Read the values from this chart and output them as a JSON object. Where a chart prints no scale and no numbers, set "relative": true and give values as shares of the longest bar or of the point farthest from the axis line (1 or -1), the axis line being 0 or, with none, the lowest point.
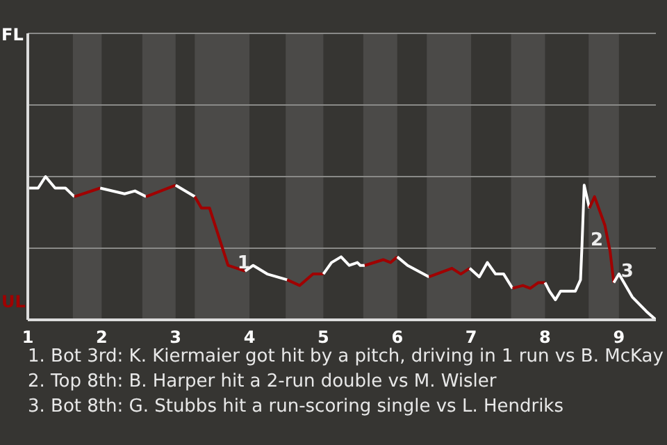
{
  "chart_data": {
    "type": "line",
    "relative": true,
    "series": [
      {
        "color": "#ffffff",
        "x": [
          1.02,
          1.14,
          1.24,
          1.37,
          1.51,
          1.63
        ],
        "values": [
          0.92,
          0.92,
          1,
          0.92,
          0.92,
          0.86
        ]
      },
      {
        "color": "#a00000",
        "x": [
          1.63,
          1.98
        ],
        "values": [
          0.86,
          0.92
        ]
      },
      {
        "color": "#ffffff",
        "x": [
          1.98,
          2.31,
          2.45,
          2.6
        ],
        "values": [
          0.92,
          0.88,
          0.9,
          0.86
        ]
      },
      {
        "color": "#a00000",
        "x": [
          2.6,
          3.0
        ],
        "values": [
          0.86,
          0.94
        ]
      },
      {
        "color": "#ffffff",
        "x": [
          3.0,
          3.26
        ],
        "values": [
          0.94,
          0.86
        ]
      },
      {
        "color": "#a00000",
        "x": [
          3.26,
          3.35,
          3.46,
          3.71,
          3.83,
          3.94
        ],
        "values": [
          0.86,
          0.78,
          0.78,
          0.38,
          0.36,
          0.34
        ]
      },
      {
        "color": "#ffffff",
        "x": [
          3.94,
          4.05,
          4.24,
          4.51
        ],
        "values": [
          0.34,
          0.38,
          0.32,
          0.28
        ]
      },
      {
        "color": "#a00000",
        "x": [
          4.51,
          4.68,
          4.86,
          5.0
        ],
        "values": [
          0.28,
          0.24,
          0.32,
          0.32
        ]
      },
      {
        "color": "#ffffff",
        "x": [
          5.0,
          5.11,
          5.24,
          5.35,
          5.46,
          5.5,
          5.56
        ],
        "values": [
          0.32,
          0.4,
          0.44,
          0.38,
          0.4,
          0.38,
          0.38
        ]
      },
      {
        "color": "#a00000",
        "x": [
          5.56,
          5.81,
          5.91,
          6.0
        ],
        "values": [
          0.38,
          0.42,
          0.4,
          0.44
        ]
      },
      {
        "color": "#ffffff",
        "x": [
          6.0,
          6.14,
          6.43
        ],
        "values": [
          0.44,
          0.38,
          0.3
        ]
      },
      {
        "color": "#a00000",
        "x": [
          6.43,
          6.74,
          6.86,
          6.98
        ],
        "values": [
          0.3,
          0.36,
          0.32,
          0.36
        ]
      },
      {
        "color": "#ffffff",
        "x": [
          6.98,
          7.11,
          7.22,
          7.33,
          7.44,
          7.56
        ],
        "values": [
          0.36,
          0.3,
          0.4,
          0.32,
          0.32,
          0.22
        ]
      },
      {
        "color": "#a00000",
        "x": [
          7.56,
          7.7,
          7.8,
          7.91,
          8.0
        ],
        "values": [
          0.22,
          0.24,
          0.22,
          0.26,
          0.26
        ]
      },
      {
        "color": "#ffffff",
        "x": [
          8.0,
          8.06,
          8.14,
          8.21,
          8.41,
          8.48,
          8.5,
          8.53,
          8.6
        ],
        "values": [
          0.26,
          0.2,
          0.14,
          0.2,
          0.2,
          0.28,
          0.52,
          0.94,
          0.78
        ]
      },
      {
        "color": "#a00000",
        "x": [
          8.6,
          8.67,
          8.74,
          8.81,
          8.88,
          8.93
        ],
        "values": [
          0.78,
          0.86,
          0.76,
          0.66,
          0.48,
          0.26
        ]
      },
      {
        "color": "#ffffff",
        "x": [
          8.93,
          9.0,
          9.18,
          9.37,
          9.5
        ],
        "values": [
          0.26,
          0.32,
          0.16,
          0.06,
          0
        ]
      }
    ],
    "xlim": [
      1,
      9.5
    ],
    "xticks": [
      1,
      2,
      3,
      4,
      5,
      6,
      7,
      8,
      9
    ],
    "ref_lines": [
      {
        "axis": "y",
        "value": 0.5,
        "color": "#8a8a88"
      },
      {
        "axis": "y",
        "value": 1,
        "color": "#8a8a88"
      },
      {
        "axis": "y",
        "value": 1.5,
        "color": "#8a8a88"
      },
      {
        "axis": "y",
        "value": 2,
        "color": "#8a8a88"
      }
    ],
    "marker": "none",
    "bands": [
      {
        "axis": "x",
        "from": 1.61,
        "to": 2,
        "color": "#4b4a48"
      },
      {
        "axis": "x",
        "from": 2.55,
        "to": 3,
        "color": "#4b4a48"
      },
      {
        "axis": "x",
        "from": 3.26,
        "to": 4,
        "color": "#4b4a48"
      },
      {
        "axis": "x",
        "from": 4.49,
        "to": 5,
        "color": "#4b4a48"
      },
      {
        "axis": "x",
        "from": 5.54,
        "to": 6,
        "color": "#4b4a48"
      },
      {
        "axis": "x",
        "from": 6.4,
        "to": 7,
        "color": "#4b4a48"
      },
      {
        "axis": "x",
        "from": 7.54,
        "to": 8,
        "color": "#4b4a48"
      },
      {
        "axis": "x",
        "from": 8.59,
        "to": 9,
        "color": "#4b4a48"
      }
    ],
    "annotations": [
      "FL",
      "UL",
      {
        "text": "1",
        "x": 3.78,
        "y": 0.38
      },
      {
        "text": "2",
        "x": 8.56,
        "y": 0.54
      },
      {
        "text": "3",
        "x": 8.97,
        "y": 0.32
      },
      "1. Bot 3rd: K. Kiermaier got hit by a pitch, driving in 1 run vs B. McKay",
      "2. Top 8th: B. Harper hit a 2-run double vs M. Wisler",
      "3. Bot 8th: G. Stubbs hit a run-scoring single vs L. Hendriks"
    ]
  }
}
